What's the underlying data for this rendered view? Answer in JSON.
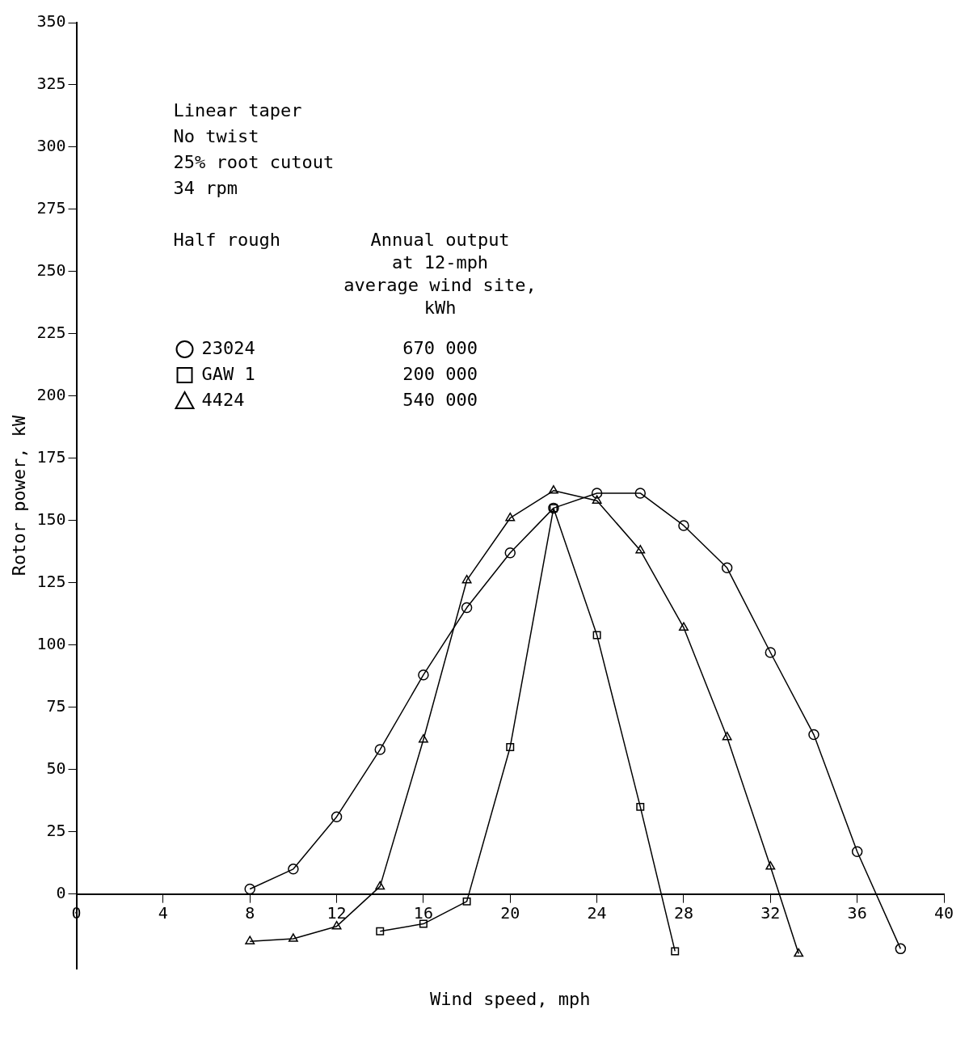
{
  "chart_data": {
    "type": "line",
    "xlabel": "Wind speed, mph",
    "ylabel": "Rotor power, kW",
    "legend_title": "Half rough",
    "annotations": [
      "Linear taper",
      "No twist",
      "25% root cutout",
      "34 rpm",
      "Annual output\nat 12-mph\naverage wind site,\nkWh",
      "670 000",
      "200 000",
      "540 000"
    ],
    "series": [
      {
        "name": "23024",
        "color": "#000000",
        "marker": "circle",
        "x": [
          8,
          10,
          12,
          14,
          16,
          18,
          20,
          22,
          24,
          26,
          28,
          30,
          32,
          34,
          36,
          38
        ],
        "values": [
          2,
          10,
          31,
          58,
          88,
          115,
          137,
          155,
          161,
          161,
          148,
          131,
          97,
          64,
          17,
          -22
        ]
      },
      {
        "name": "GAW 1",
        "color": "#000000",
        "marker": "square",
        "x": [
          14,
          16,
          18,
          20,
          22,
          24,
          26,
          27.6
        ],
        "values": [
          -15,
          -12,
          -3,
          59,
          155,
          104,
          35,
          -23
        ]
      },
      {
        "name": "4424",
        "color": "#000000",
        "marker": "triangle",
        "x": [
          8,
          10,
          12,
          14,
          16,
          18,
          20,
          22,
          24,
          26,
          28,
          30,
          32,
          33.3
        ],
        "values": [
          -19,
          -18,
          -13,
          3,
          62,
          126,
          151,
          162,
          158,
          138,
          107,
          63,
          11,
          -24
        ]
      }
    ],
    "xlim": [
      0,
      40
    ],
    "xticks": [
      0,
      4,
      8,
      12,
      16,
      20,
      24,
      28,
      32,
      36,
      40
    ],
    "ylim": [
      -30,
      350
    ],
    "yticks": [
      0,
      25,
      50,
      75,
      100,
      125,
      150,
      175,
      200,
      225,
      250,
      275,
      300,
      325,
      350
    ],
    "grid": false,
    "legend": "top left",
    "line_style": "solid"
  }
}
